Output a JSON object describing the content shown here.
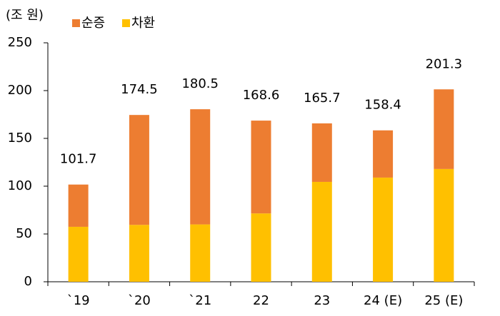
{
  "chart_data": {
    "type": "stacked_bar",
    "y_label": "(조 원)",
    "categories": [
      "`19",
      "`20",
      "`21",
      "22",
      "23",
      "24 (E)",
      "25 (E)"
    ],
    "series": [
      {
        "name": "차환",
        "color": "#FFC000",
        "values": [
          57.5,
          59.5,
          60,
          71.5,
          104.5,
          109,
          118
        ]
      },
      {
        "name": "순증",
        "color": "#ED7D31",
        "values": [
          44.2,
          115,
          120.5,
          97.1,
          61.2,
          49.4,
          83.3
        ]
      }
    ],
    "totals": [
      101.7,
      174.5,
      180.5,
      168.6,
      165.7,
      158.4,
      201.3
    ],
    "ylim": [
      0,
      250
    ],
    "yticks": [
      0,
      50,
      100,
      150,
      200,
      250
    ],
    "grid": false
  }
}
